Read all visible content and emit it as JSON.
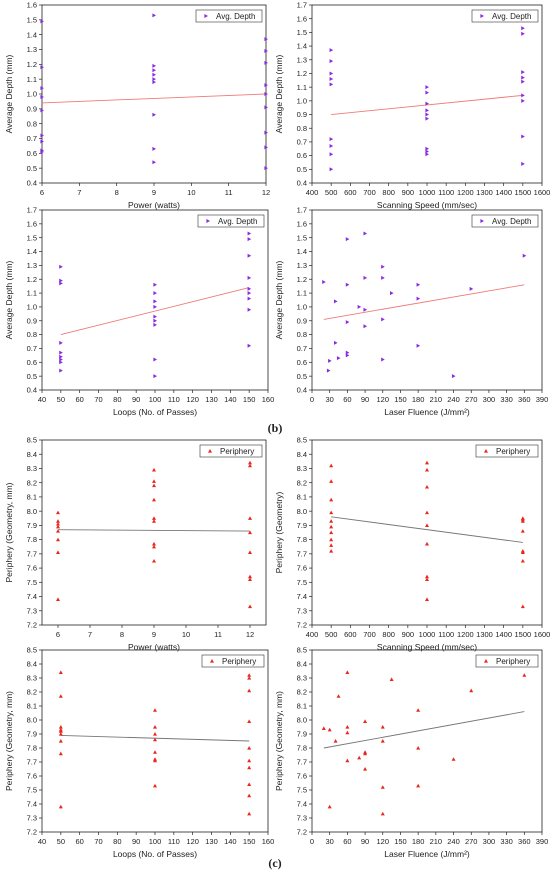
{
  "captions": {
    "b": "(b)",
    "c": "(c)"
  },
  "colors": {
    "purple": "#8a2be2",
    "red": "#e8281e",
    "trend_red": "#f07a7a",
    "trend_gray": "#777777"
  },
  "chart_data": [
    {
      "type": "scatter",
      "xlabel": "Power (watts)",
      "ylabel": "Average Depth (mm)",
      "xlim": [
        6,
        12
      ],
      "xticks": [
        6,
        7,
        8,
        9,
        10,
        11,
        12
      ],
      "ylim": [
        0.4,
        1.6
      ],
      "yticks": [
        0.4,
        0.5,
        0.6,
        0.7,
        0.8,
        0.9,
        1.0,
        1.1,
        1.2,
        1.3,
        1.4,
        1.5,
        1.6
      ],
      "legend": "Avg. Depth",
      "marker": "triangle-right",
      "trend": [
        [
          6,
          0.94
        ],
        [
          12,
          1.0
        ]
      ],
      "points": [
        [
          6,
          1.49
        ],
        [
          6,
          1.18
        ],
        [
          6,
          1.04
        ],
        [
          6,
          0.98
        ],
        [
          6,
          0.89
        ],
        [
          6,
          0.72
        ],
        [
          6,
          0.68
        ],
        [
          6,
          0.62
        ],
        [
          6,
          0.61
        ],
        [
          9,
          1.53
        ],
        [
          9,
          1.19
        ],
        [
          9,
          1.16
        ],
        [
          9,
          1.13
        ],
        [
          9,
          1.1
        ],
        [
          9,
          1.08
        ],
        [
          9,
          0.86
        ],
        [
          9,
          0.63
        ],
        [
          9,
          0.54
        ],
        [
          12,
          1.37
        ],
        [
          12,
          1.29
        ],
        [
          12,
          1.21
        ],
        [
          12,
          1.06
        ],
        [
          12,
          1.0
        ],
        [
          12,
          0.91
        ],
        [
          12,
          0.74
        ],
        [
          12,
          0.64
        ],
        [
          12,
          0.5
        ]
      ]
    },
    {
      "type": "scatter",
      "xlabel": "Scanning Speed (mm/sec)",
      "ylabel": "Average Depth (mm)",
      "xlim": [
        400,
        1600
      ],
      "xticks": [
        400,
        500,
        600,
        700,
        800,
        900,
        1000,
        1100,
        1200,
        1300,
        1400,
        1500,
        1600
      ],
      "ylim": [
        0.4,
        1.7
      ],
      "yticks": [
        0.4,
        0.5,
        0.6,
        0.7,
        0.8,
        0.9,
        1.0,
        1.1,
        1.2,
        1.3,
        1.4,
        1.5,
        1.6,
        1.7
      ],
      "legend": "Avg. Depth",
      "marker": "triangle-right",
      "trend": [
        [
          500,
          0.9
        ],
        [
          1500,
          1.04
        ]
      ],
      "points": [
        [
          500,
          1.37
        ],
        [
          500,
          1.29
        ],
        [
          500,
          1.2
        ],
        [
          500,
          1.16
        ],
        [
          500,
          1.12
        ],
        [
          500,
          0.72
        ],
        [
          500,
          0.67
        ],
        [
          500,
          0.61
        ],
        [
          500,
          0.5
        ],
        [
          1000,
          1.1
        ],
        [
          1000,
          1.06
        ],
        [
          1000,
          0.98
        ],
        [
          1000,
          0.93
        ],
        [
          1000,
          0.9
        ],
        [
          1000,
          0.87
        ],
        [
          1000,
          0.65
        ],
        [
          1000,
          0.63
        ],
        [
          1000,
          0.61
        ],
        [
          1500,
          1.53
        ],
        [
          1500,
          1.49
        ],
        [
          1500,
          1.21
        ],
        [
          1500,
          1.17
        ],
        [
          1500,
          1.14
        ],
        [
          1500,
          1.04
        ],
        [
          1500,
          1.0
        ],
        [
          1500,
          0.74
        ],
        [
          1500,
          0.54
        ]
      ]
    },
    {
      "type": "scatter",
      "xlabel": "Loops (No. of Passes)",
      "ylabel": "Average Depth (mm)",
      "xlim": [
        40,
        160
      ],
      "xticks": [
        40,
        50,
        60,
        70,
        80,
        90,
        100,
        110,
        120,
        130,
        140,
        150,
        160
      ],
      "ylim": [
        0.4,
        1.7
      ],
      "yticks": [
        0.4,
        0.5,
        0.6,
        0.7,
        0.8,
        0.9,
        1.0,
        1.1,
        1.2,
        1.3,
        1.4,
        1.5,
        1.6,
        1.7
      ],
      "legend": "Avg. Depth",
      "marker": "triangle-right",
      "trend": [
        [
          50,
          0.8
        ],
        [
          150,
          1.14
        ]
      ],
      "points": [
        [
          50,
          1.29
        ],
        [
          50,
          1.19
        ],
        [
          50,
          1.17
        ],
        [
          50,
          0.74
        ],
        [
          50,
          0.67
        ],
        [
          50,
          0.64
        ],
        [
          50,
          0.62
        ],
        [
          50,
          0.6
        ],
        [
          50,
          0.54
        ],
        [
          100,
          1.16
        ],
        [
          100,
          1.1
        ],
        [
          100,
          1.04
        ],
        [
          100,
          1.0
        ],
        [
          100,
          0.93
        ],
        [
          100,
          0.9
        ],
        [
          100,
          0.87
        ],
        [
          100,
          0.62
        ],
        [
          100,
          0.5
        ],
        [
          150,
          1.53
        ],
        [
          150,
          1.49
        ],
        [
          150,
          1.37
        ],
        [
          150,
          1.21
        ],
        [
          150,
          1.13
        ],
        [
          150,
          1.1
        ],
        [
          150,
          1.06
        ],
        [
          150,
          0.98
        ],
        [
          150,
          0.72
        ]
      ]
    },
    {
      "type": "scatter",
      "xlabel": "Laser Fluence (J/mm²)",
      "ylabel": "Average Depth (mm)",
      "xlim": [
        0,
        390
      ],
      "xticks": [
        0,
        30,
        60,
        90,
        120,
        150,
        180,
        210,
        240,
        270,
        300,
        330,
        360,
        390
      ],
      "ylim": [
        0.4,
        1.7
      ],
      "yticks": [
        0.4,
        0.5,
        0.6,
        0.7,
        0.8,
        0.9,
        1.0,
        1.1,
        1.2,
        1.3,
        1.4,
        1.5,
        1.6,
        1.7
      ],
      "legend": "Avg. Depth",
      "marker": "triangle-right",
      "trend": [
        [
          20,
          0.91
        ],
        [
          360,
          1.16
        ]
      ],
      "points": [
        [
          20,
          1.18
        ],
        [
          28,
          0.54
        ],
        [
          30,
          0.61
        ],
        [
          40,
          1.04
        ],
        [
          40,
          0.74
        ],
        [
          45,
          0.63
        ],
        [
          60,
          1.49
        ],
        [
          60,
          1.16
        ],
        [
          60,
          0.89
        ],
        [
          60,
          0.67
        ],
        [
          60,
          0.65
        ],
        [
          80,
          1.0
        ],
        [
          90,
          1.53
        ],
        [
          90,
          1.21
        ],
        [
          90,
          0.98
        ],
        [
          90,
          0.86
        ],
        [
          120,
          1.29
        ],
        [
          120,
          1.21
        ],
        [
          120,
          0.91
        ],
        [
          120,
          0.62
        ],
        [
          135,
          1.1
        ],
        [
          180,
          1.16
        ],
        [
          180,
          1.06
        ],
        [
          180,
          0.72
        ],
        [
          240,
          0.5
        ],
        [
          270,
          1.13
        ],
        [
          360,
          1.37
        ]
      ]
    },
    {
      "type": "scatter",
      "xlabel": "Power (watts)",
      "ylabel": "Periphery (Geometry, mm)",
      "xlim": [
        5.5,
        12.5
      ],
      "xticks": [
        6,
        7,
        8,
        9,
        10,
        11,
        12
      ],
      "ylim": [
        7.2,
        8.5
      ],
      "yticks": [
        7.2,
        7.3,
        7.4,
        7.5,
        7.6,
        7.7,
        7.8,
        7.9,
        8.0,
        8.1,
        8.2,
        8.3,
        8.4,
        8.5
      ],
      "legend": "Periphery",
      "marker": "triangle-up",
      "trend": [
        [
          6,
          7.87
        ],
        [
          12,
          7.86
        ]
      ],
      "points": [
        [
          6,
          7.99
        ],
        [
          6,
          7.93
        ],
        [
          6,
          7.91
        ],
        [
          6,
          7.89
        ],
        [
          6,
          7.86
        ],
        [
          6,
          7.8
        ],
        [
          6,
          7.71
        ],
        [
          6,
          7.38
        ],
        [
          9,
          8.29
        ],
        [
          9,
          8.21
        ],
        [
          9,
          8.18
        ],
        [
          9,
          8.08
        ],
        [
          9,
          7.95
        ],
        [
          9,
          7.93
        ],
        [
          9,
          7.77
        ],
        [
          9,
          7.75
        ],
        [
          9,
          7.65
        ],
        [
          12,
          8.34
        ],
        [
          12,
          8.32
        ],
        [
          12,
          7.95
        ],
        [
          12,
          7.85
        ],
        [
          12,
          7.71
        ],
        [
          12,
          7.54
        ],
        [
          12,
          7.52
        ],
        [
          12,
          7.33
        ]
      ]
    },
    {
      "type": "scatter",
      "xlabel": "Scanning Speed (mm/sec)",
      "ylabel": "Periphery (Geometry)",
      "xlim": [
        400,
        1600
      ],
      "xticks": [
        400,
        500,
        600,
        700,
        800,
        900,
        1000,
        1100,
        1200,
        1300,
        1400,
        1500,
        1600
      ],
      "ylim": [
        7.2,
        8.5
      ],
      "yticks": [
        7.2,
        7.3,
        7.4,
        7.5,
        7.6,
        7.7,
        7.8,
        7.9,
        8.0,
        8.1,
        8.2,
        8.3,
        8.4,
        8.5
      ],
      "legend": "Periphery",
      "marker": "triangle-up",
      "trend": [
        [
          500,
          7.96
        ],
        [
          1500,
          7.78
        ]
      ],
      "points": [
        [
          500,
          8.32
        ],
        [
          500,
          8.21
        ],
        [
          500,
          8.08
        ],
        [
          500,
          7.99
        ],
        [
          500,
          7.93
        ],
        [
          500,
          7.89
        ],
        [
          500,
          7.85
        ],
        [
          500,
          7.8
        ],
        [
          500,
          7.76
        ],
        [
          500,
          7.72
        ],
        [
          1000,
          8.34
        ],
        [
          1000,
          8.29
        ],
        [
          1000,
          8.17
        ],
        [
          1000,
          7.99
        ],
        [
          1000,
          7.9
        ],
        [
          1000,
          7.77
        ],
        [
          1000,
          7.54
        ],
        [
          1000,
          7.52
        ],
        [
          1000,
          7.38
        ],
        [
          1500,
          7.95
        ],
        [
          1500,
          7.94
        ],
        [
          1500,
          7.93
        ],
        [
          1500,
          7.86
        ],
        [
          1500,
          7.72
        ],
        [
          1500,
          7.71
        ],
        [
          1500,
          7.65
        ],
        [
          1500,
          7.33
        ]
      ]
    },
    {
      "type": "scatter",
      "xlabel": "Loops (No. of Passes)",
      "ylabel": "Periphery (Geometry, mm)",
      "xlim": [
        40,
        160
      ],
      "xticks": [
        40,
        50,
        60,
        70,
        80,
        90,
        100,
        110,
        120,
        130,
        140,
        150,
        160
      ],
      "ylim": [
        7.2,
        8.5
      ],
      "yticks": [
        7.2,
        7.3,
        7.4,
        7.5,
        7.6,
        7.7,
        7.8,
        7.9,
        8.0,
        8.1,
        8.2,
        8.3,
        8.4,
        8.5
      ],
      "legend": "Periphery",
      "marker": "triangle-up",
      "trend": [
        [
          50,
          7.89
        ],
        [
          150,
          7.85
        ]
      ],
      "points": [
        [
          50,
          8.34
        ],
        [
          50,
          8.17
        ],
        [
          50,
          7.95
        ],
        [
          50,
          7.93
        ],
        [
          50,
          7.92
        ],
        [
          50,
          7.9
        ],
        [
          50,
          7.85
        ],
        [
          50,
          7.76
        ],
        [
          50,
          7.38
        ],
        [
          100,
          8.07
        ],
        [
          100,
          7.95
        ],
        [
          100,
          7.9
        ],
        [
          100,
          7.86
        ],
        [
          100,
          7.77
        ],
        [
          100,
          7.72
        ],
        [
          100,
          7.71
        ],
        [
          100,
          7.53
        ],
        [
          150,
          8.32
        ],
        [
          150,
          8.3
        ],
        [
          150,
          8.21
        ],
        [
          150,
          7.99
        ],
        [
          150,
          7.8
        ],
        [
          150,
          7.71
        ],
        [
          150,
          7.66
        ],
        [
          150,
          7.54
        ],
        [
          150,
          7.46
        ],
        [
          150,
          7.33
        ]
      ]
    },
    {
      "type": "scatter",
      "xlabel": "Laser Fluence (J/mm²)",
      "ylabel": "Periphery (Geometry, mm)",
      "xlim": [
        0,
        390
      ],
      "xticks": [
        0,
        30,
        60,
        90,
        120,
        150,
        180,
        210,
        240,
        270,
        300,
        330,
        360,
        390
      ],
      "ylim": [
        7.2,
        8.5
      ],
      "yticks": [
        7.2,
        7.3,
        7.4,
        7.5,
        7.6,
        7.7,
        7.8,
        7.9,
        8.0,
        8.1,
        8.2,
        8.3,
        8.4,
        8.5
      ],
      "legend": "Periphery",
      "marker": "triangle-up",
      "trend": [
        [
          20,
          7.8
        ],
        [
          360,
          8.06
        ]
      ],
      "points": [
        [
          20,
          7.94
        ],
        [
          30,
          7.93
        ],
        [
          30,
          7.38
        ],
        [
          40,
          7.85
        ],
        [
          45,
          8.17
        ],
        [
          60,
          8.34
        ],
        [
          60,
          7.95
        ],
        [
          60,
          7.91
        ],
        [
          60,
          7.71
        ],
        [
          80,
          7.73
        ],
        [
          90,
          7.99
        ],
        [
          90,
          7.77
        ],
        [
          90,
          7.76
        ],
        [
          90,
          7.65
        ],
        [
          120,
          7.95
        ],
        [
          120,
          7.85
        ],
        [
          120,
          7.52
        ],
        [
          120,
          7.33
        ],
        [
          135,
          8.29
        ],
        [
          180,
          8.07
        ],
        [
          180,
          7.8
        ],
        [
          180,
          7.53
        ],
        [
          240,
          7.72
        ],
        [
          270,
          8.21
        ],
        [
          360,
          8.32
        ]
      ]
    }
  ]
}
